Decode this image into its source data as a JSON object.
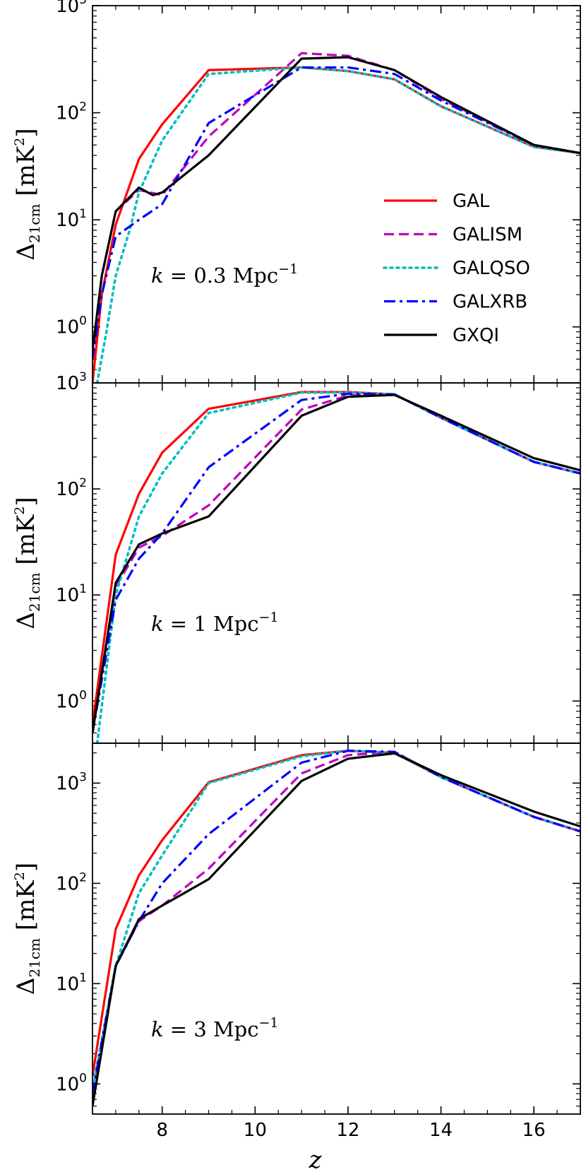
{
  "chart_data": [
    {
      "type": "line",
      "annotation": {
        "var": "k",
        "eq": " = 0.3 ",
        "unit": "Mpc",
        "exp": "−1"
      },
      "ylabel": {
        "sym": "Δ",
        "sub": "21cm",
        "unit_open": " [mK",
        "exp": "2",
        "unit_close": "]"
      },
      "xlabel": "z",
      "xlim": [
        6.5,
        17
      ],
      "ylim": [
        0.3,
        1000
      ],
      "yscale": "log",
      "yticks": [
        {
          "value": 1,
          "base": "10",
          "exp": "0"
        },
        {
          "value": 10,
          "base": "10",
          "exp": "1"
        },
        {
          "value": 100,
          "base": "10",
          "exp": "2"
        },
        {
          "value": 1000,
          "base": "10",
          "exp": "3"
        }
      ],
      "xticks": [
        8,
        10,
        12,
        14,
        16
      ],
      "show_xticklabels": false,
      "legend_position": "right",
      "series": [
        {
          "name": "GAL",
          "color": "#ff0000",
          "style": "solid",
          "x": [
            6.5,
            6.7,
            7,
            7.5,
            8,
            9,
            11,
            12,
            13,
            14,
            16,
            17
          ],
          "y": [
            0.3,
            2,
            9,
            37,
            78,
            250,
            265,
            245,
            205,
            115,
            48,
            42
          ]
        },
        {
          "name": "GALISM",
          "color": "#bf00bf",
          "style": "dashed",
          "x": [
            6.5,
            6.7,
            7,
            7.5,
            8,
            9,
            11,
            12,
            13,
            14,
            16,
            17
          ],
          "y": [
            0.5,
            3,
            12,
            19,
            17,
            60,
            360,
            340,
            250,
            135,
            50,
            42
          ]
        },
        {
          "name": "GALQSO",
          "color": "#00bfbf",
          "style": "dotted",
          "x": [
            6.6,
            6.8,
            7,
            7.3,
            7.5,
            8,
            9,
            11,
            12,
            13,
            14,
            16,
            17
          ],
          "y": [
            0.3,
            0.9,
            3,
            8,
            18,
            55,
            230,
            265,
            245,
            205,
            115,
            48,
            42
          ]
        },
        {
          "name": "GALXRB",
          "color": "#0000ff",
          "style": "dashdot",
          "x": [
            6.5,
            6.7,
            7,
            7.5,
            8,
            9,
            11,
            12,
            13,
            14,
            16,
            17
          ],
          "y": [
            0.5,
            2,
            7,
            10,
            14,
            80,
            265,
            265,
            230,
            130,
            50,
            42
          ]
        },
        {
          "name": "GXQI",
          "color": "#000000",
          "style": "solid",
          "x": [
            6.5,
            6.7,
            7,
            7.5,
            7.8,
            8,
            9,
            11,
            12,
            13,
            14,
            16,
            17
          ],
          "y": [
            0.6,
            3,
            12,
            20,
            17,
            18,
            40,
            320,
            330,
            250,
            140,
            50,
            42
          ]
        }
      ]
    },
    {
      "type": "line",
      "annotation": {
        "var": "k",
        "eq": " = 1 ",
        "unit": "Mpc",
        "exp": "−1"
      },
      "ylabel": {
        "sym": "Δ",
        "sub": "21cm",
        "unit_open": " [mK",
        "exp": "2",
        "unit_close": "]"
      },
      "xlabel": "z",
      "xlim": [
        6.5,
        17
      ],
      "ylim": [
        0.4,
        1000
      ],
      "yscale": "log",
      "yticks": [
        {
          "value": 1,
          "base": "10",
          "exp": "0"
        },
        {
          "value": 10,
          "base": "10",
          "exp": "1"
        },
        {
          "value": 100,
          "base": "10",
          "exp": "2"
        },
        {
          "value": 1000,
          "base": "10",
          "exp": "3"
        }
      ],
      "xticks": [
        8,
        10,
        12,
        14,
        16
      ],
      "show_xticklabels": false,
      "series": [
        {
          "name": "GAL",
          "color": "#ff0000",
          "style": "solid",
          "x": [
            6.5,
            7,
            7.5,
            8,
            9,
            11,
            12,
            13,
            14,
            16,
            17
          ],
          "y": [
            0.6,
            24,
            90,
            220,
            570,
            820,
            820,
            780,
            470,
            180,
            140
          ]
        },
        {
          "name": "GALISM",
          "color": "#bf00bf",
          "style": "dashed",
          "x": [
            6.5,
            7,
            7.5,
            8,
            9,
            11,
            12,
            13,
            14,
            16,
            17
          ],
          "y": [
            0.5,
            12,
            28,
            36,
            70,
            560,
            760,
            780,
            470,
            180,
            140
          ]
        },
        {
          "name": "GALQSO",
          "color": "#00bfbf",
          "style": "dotted",
          "x": [
            6.6,
            7,
            7.5,
            8,
            9,
            11,
            12,
            13,
            14,
            16,
            17
          ],
          "y": [
            0.4,
            10,
            55,
            140,
            520,
            810,
            810,
            780,
            470,
            180,
            140
          ]
        },
        {
          "name": "GALXRB",
          "color": "#0000ff",
          "style": "dashdot",
          "x": [
            6.5,
            7,
            7.5,
            8,
            9,
            11,
            12,
            13,
            14,
            16,
            17
          ],
          "y": [
            0.5,
            9,
            22,
            38,
            160,
            690,
            790,
            780,
            470,
            180,
            140
          ]
        },
        {
          "name": "GXQI",
          "color": "#000000",
          "style": "solid",
          "x": [
            6.5,
            7,
            7.5,
            8,
            9,
            11,
            12,
            13,
            14,
            16,
            17
          ],
          "y": [
            0.5,
            13,
            30,
            38,
            55,
            490,
            740,
            770,
            490,
            195,
            150
          ]
        }
      ]
    },
    {
      "type": "line",
      "annotation": {
        "var": "k",
        "eq": " = 3 ",
        "unit": "Mpc",
        "exp": "−1"
      },
      "ylabel": {
        "sym": "Δ",
        "sub": "21cm",
        "unit_open": " [mK",
        "exp": "2",
        "unit_close": "]"
      },
      "xlabel": "z",
      "xlim": [
        6.5,
        17
      ],
      "ylim": [
        0.5,
        2500
      ],
      "yscale": "log",
      "yticks": [
        {
          "value": 1,
          "base": "10",
          "exp": "0"
        },
        {
          "value": 10,
          "base": "10",
          "exp": "1"
        },
        {
          "value": 100,
          "base": "10",
          "exp": "2"
        },
        {
          "value": 1000,
          "base": "10",
          "exp": "3"
        }
      ],
      "xticks": [
        8,
        10,
        12,
        14,
        16
      ],
      "show_xticklabels": true,
      "series": [
        {
          "name": "GAL",
          "color": "#ff0000",
          "style": "solid",
          "x": [
            6.5,
            7,
            7.5,
            8,
            9,
            11,
            12,
            13,
            14,
            16,
            17
          ],
          "y": [
            1.2,
            35,
            120,
            270,
            1020,
            1900,
            2100,
            2000,
            1150,
            460,
            330
          ]
        },
        {
          "name": "GALISM",
          "color": "#bf00bf",
          "style": "dashed",
          "x": [
            6.5,
            7,
            7.5,
            8,
            9,
            11,
            12,
            13,
            14,
            16,
            17
          ],
          "y": [
            0.8,
            15,
            42,
            60,
            140,
            1250,
            1900,
            2050,
            1150,
            460,
            330
          ]
        },
        {
          "name": "GALQSO",
          "color": "#00bfbf",
          "style": "dotted",
          "x": [
            6.5,
            7,
            7.5,
            8,
            9,
            11,
            12,
            13,
            14,
            16,
            17
          ],
          "y": [
            0.9,
            15,
            80,
            190,
            1000,
            1850,
            2100,
            2000,
            1150,
            460,
            330
          ]
        },
        {
          "name": "GALXRB",
          "color": "#0000ff",
          "style": "dashdot",
          "x": [
            6.5,
            7,
            7.5,
            8,
            9,
            11,
            12,
            13,
            14,
            16,
            17
          ],
          "y": [
            0.8,
            15,
            42,
            100,
            310,
            1600,
            2100,
            2050,
            1150,
            460,
            330
          ]
        },
        {
          "name": "GXQI",
          "color": "#000000",
          "style": "solid",
          "x": [
            6.5,
            7,
            7.5,
            8,
            9,
            11,
            12,
            13,
            14,
            16,
            17
          ],
          "y": [
            0.6,
            15,
            44,
            60,
            110,
            1050,
            1750,
            1980,
            1200,
            520,
            370
          ]
        }
      ]
    }
  ]
}
